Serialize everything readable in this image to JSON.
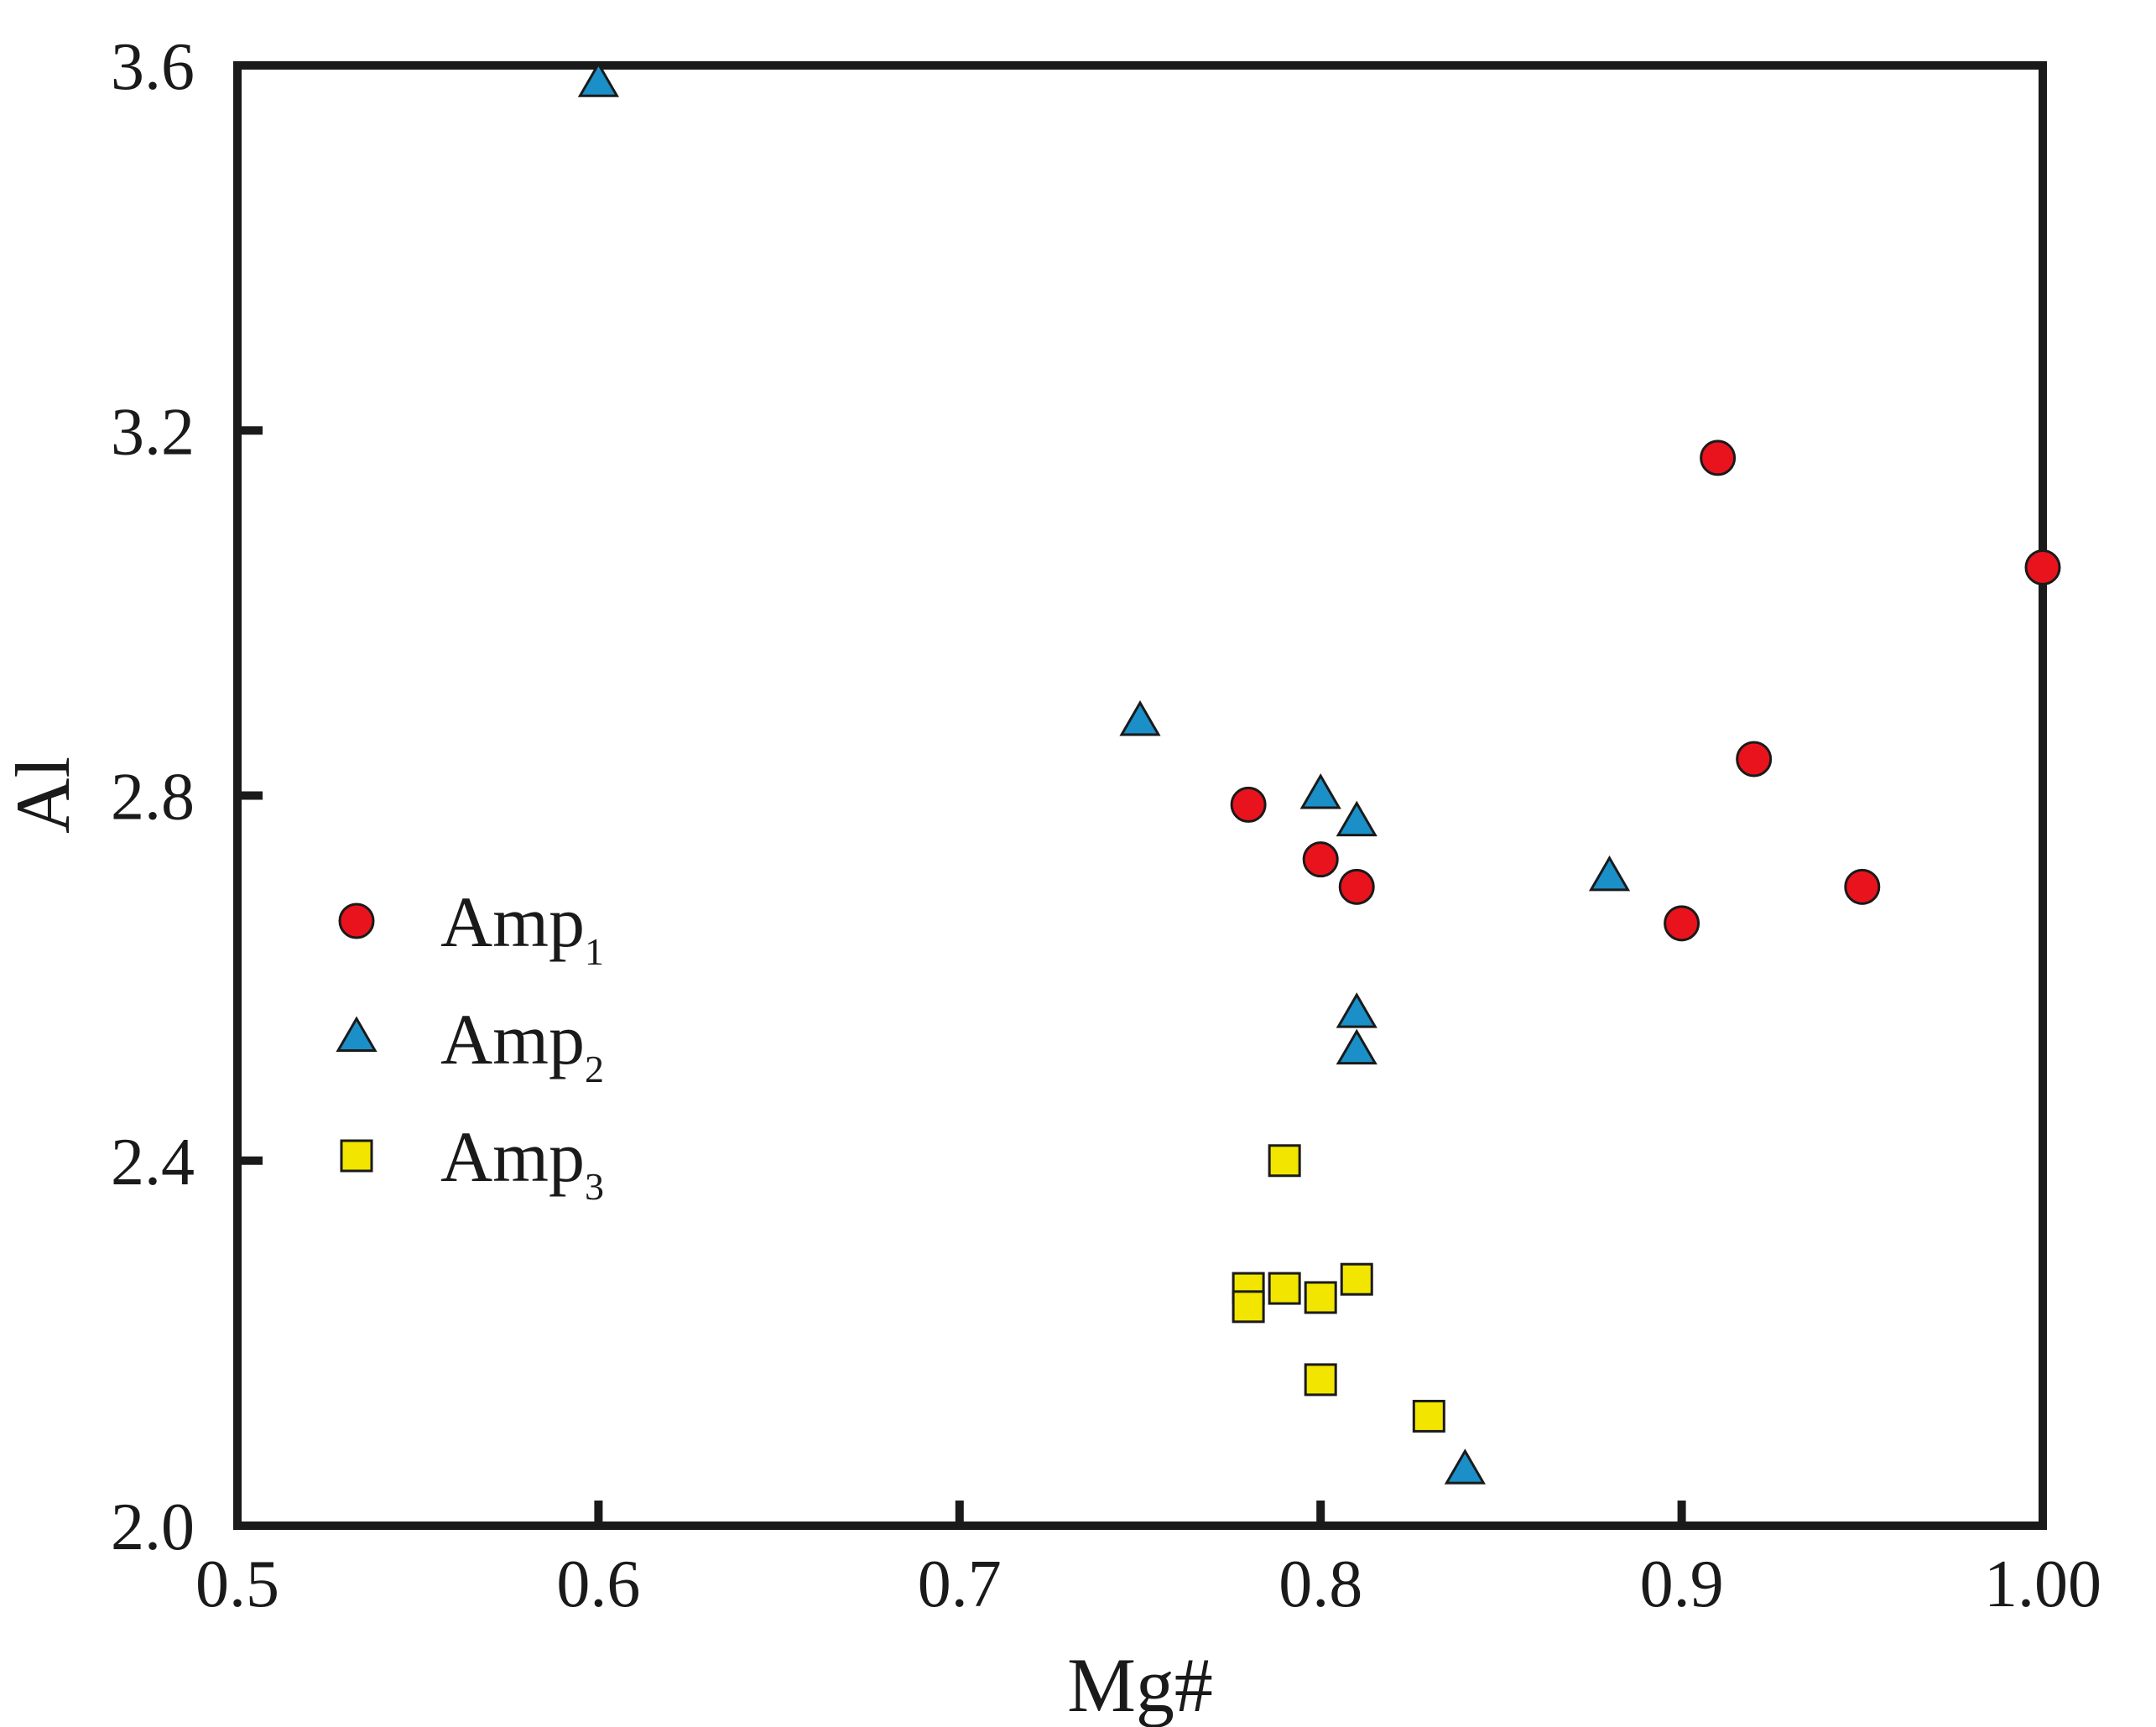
{
  "chart_data": {
    "type": "scatter",
    "title": "",
    "xlabel": "Mg#",
    "ylabel": "Al",
    "xlim": [
      0.5,
      1.0
    ],
    "ylim": [
      2.0,
      3.6
    ],
    "xticks": [
      0.5,
      0.6,
      0.7,
      0.8,
      0.9,
      1.0
    ],
    "xtick_labels": [
      "0.5",
      "0.6",
      "0.7",
      "0.8",
      "0.9",
      "1.00"
    ],
    "yticks": [
      2.0,
      2.4,
      2.8,
      3.2,
      3.6
    ],
    "ytick_labels": [
      "2.0",
      "2.4",
      "2.8",
      "3.2",
      "3.6"
    ],
    "grid": false,
    "legend_position": "center-left",
    "series": [
      {
        "name": "Amp",
        "subscript": "1",
        "marker": "circle",
        "color": "#e8131c",
        "points": [
          {
            "x": 0.91,
            "y": 3.17
          },
          {
            "x": 1.0,
            "y": 3.05
          },
          {
            "x": 0.92,
            "y": 2.84
          },
          {
            "x": 0.78,
            "y": 2.79
          },
          {
            "x": 0.8,
            "y": 2.73
          },
          {
            "x": 0.81,
            "y": 2.7
          },
          {
            "x": 0.95,
            "y": 2.7
          },
          {
            "x": 0.9,
            "y": 2.66
          }
        ]
      },
      {
        "name": "Amp",
        "subscript": "2",
        "marker": "triangle",
        "color": "#1a8fc8",
        "points": [
          {
            "x": 0.6,
            "y": 3.58
          },
          {
            "x": 0.75,
            "y": 2.88
          },
          {
            "x": 0.8,
            "y": 2.8
          },
          {
            "x": 0.81,
            "y": 2.77
          },
          {
            "x": 0.88,
            "y": 2.71
          },
          {
            "x": 0.81,
            "y": 2.56
          },
          {
            "x": 0.81,
            "y": 2.52
          },
          {
            "x": 0.84,
            "y": 2.06
          }
        ]
      },
      {
        "name": "Amp",
        "subscript": "3",
        "marker": "square",
        "color": "#f2e600",
        "points": [
          {
            "x": 0.79,
            "y": 2.4
          },
          {
            "x": 0.78,
            "y": 2.26
          },
          {
            "x": 0.79,
            "y": 2.26
          },
          {
            "x": 0.8,
            "y": 2.25
          },
          {
            "x": 0.81,
            "y": 2.27
          },
          {
            "x": 0.78,
            "y": 2.24
          },
          {
            "x": 0.8,
            "y": 2.16
          },
          {
            "x": 0.83,
            "y": 2.12
          }
        ]
      }
    ]
  }
}
